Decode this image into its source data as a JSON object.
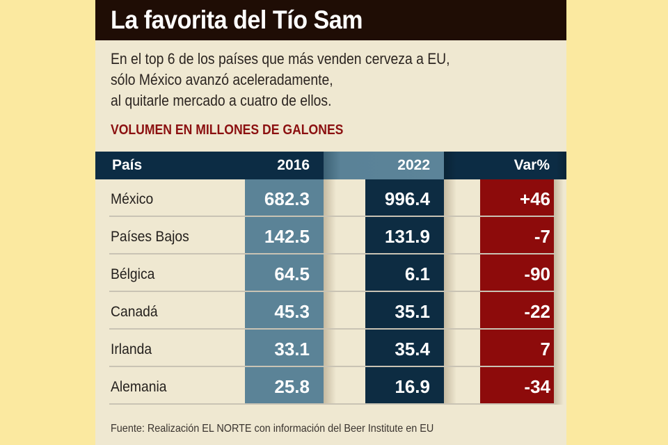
{
  "title": "La favorita del Tío Sam",
  "subtitle_lines": [
    "En el top 6 de los países que más venden cerveza a EU,",
    "sólo México avanzó aceleradamente,",
    "al quitarle mercado a cuatro de ellos."
  ],
  "unit_label": "VOLUMEN EN MILLONES DE GALONES",
  "colors": {
    "background": "#fbe9a0",
    "panel": "#efe8d1",
    "title_bar": "#1f0d05",
    "header_navy": "#0c2c44",
    "col_2016": "#5b8397",
    "col_2022": "#0d2c42",
    "col_var": "#8d0b0b",
    "unit_label": "#8b1010"
  },
  "table": {
    "headers": {
      "country": "País",
      "y2016": "2016",
      "y2022": "2022",
      "var": "Var%"
    },
    "rows": [
      {
        "country": "México",
        "y2016": "682.3",
        "y2022": "996.4",
        "var": "+46"
      },
      {
        "country": "Países Bajos",
        "y2016": "142.5",
        "y2022": "131.9",
        "var": "-7"
      },
      {
        "country": "Bélgica",
        "y2016": "64.5",
        "y2022": "6.1",
        "var": "-90"
      },
      {
        "country": "Canadá",
        "y2016": "45.3",
        "y2022": "35.1",
        "var": "-22"
      },
      {
        "country": "Irlanda",
        "y2016": "33.1",
        "y2022": "35.4",
        "var": "7"
      },
      {
        "country": "Alemania",
        "y2016": "25.8",
        "y2022": "16.9",
        "var": "-34"
      }
    ]
  },
  "chart_data": {
    "type": "table",
    "title": "La favorita del Tío Sam",
    "subtitle": "En el top 6 de los países que más venden cerveza a EU, sólo México avanzó aceleradamente, al quitarle mercado a cuatro de ellos.",
    "unit": "VOLUMEN EN MILLONES DE GALONES",
    "columns": [
      "País",
      "2016",
      "2022",
      "Var%"
    ],
    "categories": [
      "México",
      "Países Bajos",
      "Bélgica",
      "Canadá",
      "Irlanda",
      "Alemania"
    ],
    "series": [
      {
        "name": "2016",
        "values": [
          682.3,
          142.5,
          64.5,
          45.3,
          33.1,
          25.8
        ]
      },
      {
        "name": "2022",
        "values": [
          996.4,
          131.9,
          6.1,
          35.1,
          35.4,
          16.9
        ]
      },
      {
        "name": "Var%",
        "values": [
          46,
          -7,
          -90,
          -22,
          7,
          -34
        ]
      }
    ],
    "source": "Fuente: Realización EL NORTE con información del Beer Institute en EU"
  },
  "source": "Fuente: Realización EL NORTE con información del Beer Institute en EU"
}
